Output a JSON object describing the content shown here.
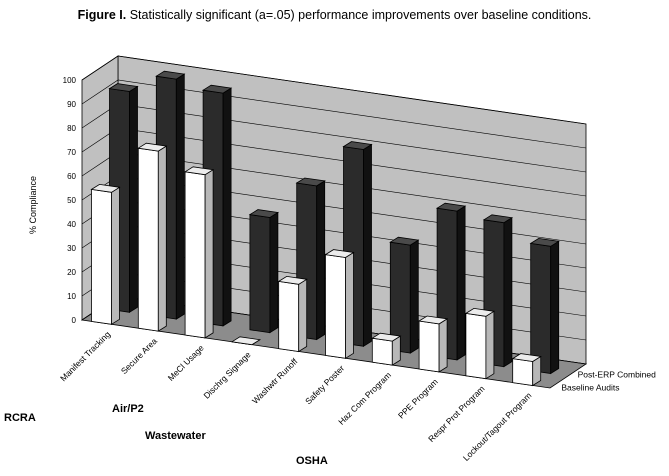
{
  "figure": {
    "label": "Figure I.",
    "caption": "Statistically significant (a=.05) performance improvements over baseline conditions."
  },
  "groups": [
    "RCRA",
    "Air/P2",
    "Wastewater",
    "OSHA"
  ],
  "chart_data": {
    "type": "bar",
    "style": "3d-grouped",
    "ylabel": "% Compliance",
    "ylim": [
      0,
      100
    ],
    "yticks": [
      0,
      10,
      20,
      30,
      40,
      50,
      60,
      70,
      80,
      90,
      100
    ],
    "grid": true,
    "categories": [
      "Manifest Tracking",
      "Secure Area",
      "MeCl Usage",
      "Dischrg Signage",
      "Washwtr Runoff",
      "Safety Poster",
      "Haz Com Program",
      "PPE Program",
      "Respr Prot Program",
      "Lockout/Tagout Program"
    ],
    "series": [
      {
        "name": "Baseline Audits",
        "color": "#ffffff",
        "values": [
          55,
          75,
          68,
          0,
          28,
          42,
          10,
          20,
          26,
          10
        ]
      },
      {
        "name": "Post-ERP Combined",
        "color": "#2b2b2b",
        "values": [
          92,
          100,
          97,
          48,
          64,
          82,
          45,
          62,
          60,
          53
        ]
      }
    ],
    "legend_placement": "bottom-right"
  }
}
